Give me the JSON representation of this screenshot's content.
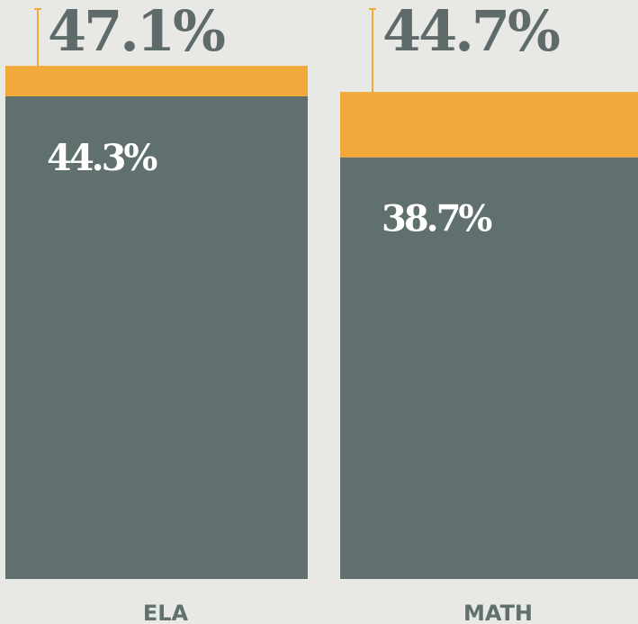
{
  "chart_data": {
    "type": "stacked-bar",
    "categories": [
      "ELA",
      "MATH"
    ],
    "series": [
      {
        "color": "#5f706e",
        "values": [
          44.3,
          38.7
        ],
        "value_labels": [
          "44.3%",
          "38.7%"
        ]
      },
      {
        "color": "#f2a93b",
        "values": [
          2.8,
          6.0
        ]
      }
    ],
    "totals": [
      47.1,
      44.7
    ],
    "total_labels": [
      "47.1%",
      "44.7%"
    ],
    "ylim": [
      0,
      50
    ]
  }
}
